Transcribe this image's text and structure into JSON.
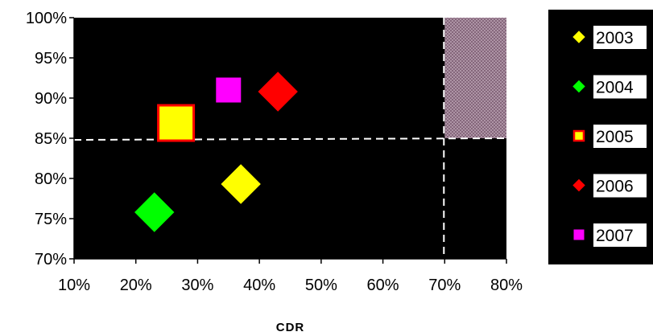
{
  "chart_data": {
    "type": "scatter",
    "title": "",
    "xlabel": "CDR",
    "ylabel": "",
    "xlim": [
      0.1,
      0.8
    ],
    "ylim": [
      0.7,
      1.0
    ],
    "x_ticks": [
      0.1,
      0.2,
      0.3,
      0.4,
      0.5,
      0.6,
      0.7,
      0.8
    ],
    "y_ticks": [
      0.7,
      0.75,
      0.8,
      0.85,
      0.9,
      0.95,
      1.0
    ],
    "x_tick_labels": [
      "10%",
      "20%",
      "30%",
      "40%",
      "50%",
      "60%",
      "70%",
      "80%"
    ],
    "y_tick_labels": [
      "70%",
      "75%",
      "80%",
      "85%",
      "90%",
      "95%",
      "100%"
    ],
    "plot_background": "#000000",
    "grid": false,
    "legend_position": "right",
    "thresholds": {
      "x": 0.7,
      "y": 0.85,
      "line_color": "#ffffff",
      "line_style": "dashed"
    },
    "target_region": {
      "x": [
        0.7,
        0.8
      ],
      "y": [
        0.85,
        1.0
      ],
      "color": "#8a6a7e",
      "pattern": "crosshatch"
    },
    "series": [
      {
        "name": "2003",
        "x": 0.37,
        "y": 0.793,
        "marker": "diamond",
        "color": "#ffff00",
        "border": "#ffff00"
      },
      {
        "name": "2004",
        "x": 0.23,
        "y": 0.758,
        "marker": "diamond",
        "color": "#00ff00",
        "border": "#00ff00"
      },
      {
        "name": "2005",
        "x": 0.265,
        "y": 0.869,
        "marker": "square",
        "color": "#ffff00",
        "border": "#ff0000"
      },
      {
        "name": "2006",
        "x": 0.43,
        "y": 0.908,
        "marker": "diamond",
        "color": "#ff0000",
        "border": "#ff0000"
      },
      {
        "name": "2007",
        "x": 0.35,
        "y": 0.91,
        "marker": "square",
        "color": "#ff00ff",
        "border": "#ff00ff"
      }
    ]
  }
}
